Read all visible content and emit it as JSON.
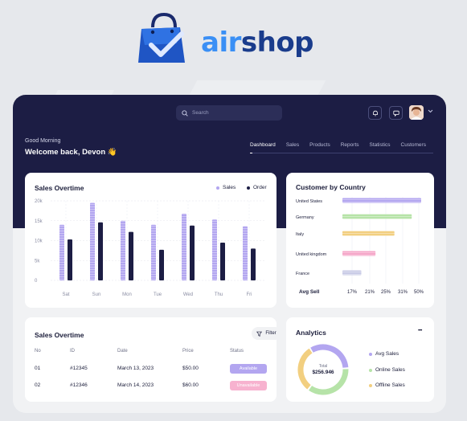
{
  "brand": {
    "name_part1": "air",
    "name_part2": "shop"
  },
  "header": {
    "search_placeholder": "Search",
    "greeting": "Good Morning",
    "welcome": "Welcome back, Devon 👋"
  },
  "tabs": [
    "Dashboard",
    "Sales",
    "Products",
    "Reports",
    "Statistics",
    "Customers"
  ],
  "sales_chart_card": {
    "title": "Sales Overtime",
    "legend": [
      "Sales",
      "Order"
    ]
  },
  "chart_data": [
    {
      "type": "bar",
      "title": "Sales Overtime",
      "categories": [
        "Sat",
        "Sun",
        "Mon",
        "Tue",
        "Wed",
        "Thu",
        "Fri"
      ],
      "y_ticks": [
        "0",
        "5k",
        "10k",
        "15k",
        "20k"
      ],
      "ylim": [
        0,
        20000
      ],
      "series": [
        {
          "name": "Sales",
          "color": "#b3a6f0",
          "values": [
            14000,
            19500,
            15000,
            14000,
            16800,
            15300,
            13600
          ]
        },
        {
          "name": "Order",
          "color": "#1c1d44",
          "values": [
            10300,
            14600,
            12200,
            7700,
            13800,
            9500,
            8000
          ]
        }
      ],
      "grid": true,
      "legend_placement": "top-right"
    },
    {
      "type": "bar",
      "orientation": "horizontal",
      "title": "Customer by Country",
      "categories": [
        "United States",
        "Germany",
        "Italy",
        "United kingdom",
        "France"
      ],
      "xlabel": "Avg Sell",
      "x_ticks": [
        "17%",
        "21%",
        "25%",
        "31%",
        "50%"
      ],
      "values": [
        50,
        44,
        33,
        21,
        12
      ],
      "colors": [
        "#b3a6f0",
        "#b6e3a8",
        "#f2cf80",
        "#f5a6c8",
        "#c9cbe6"
      ],
      "grid": true
    }
  ],
  "table_card": {
    "title": "Sales Overtime",
    "filter_label": "Filter",
    "columns": [
      "No",
      "ID",
      "Date",
      "Price",
      "Status"
    ],
    "rows": [
      {
        "no": "01",
        "id": "#12345",
        "date": "March 13, 2023",
        "price": "$50.00",
        "status": "Available",
        "status_color": "#b3a6f0"
      },
      {
        "no": "02",
        "id": "#12346",
        "date": "March 14, 2023",
        "price": "$60.00",
        "status": "Unavailable",
        "status_color": "#f7b2cf"
      }
    ]
  },
  "analytics_card": {
    "title": "Analytics",
    "more_label": "•••",
    "total_label": "Total",
    "total_value": "$256.946",
    "legend": [
      {
        "label": "Avg Sales",
        "color": "#b3a6f0"
      },
      {
        "label": "Online Sales",
        "color": "#b6e3a8"
      },
      {
        "label": "Offline Sales",
        "color": "#f2cf80"
      }
    ],
    "donut_shares": [
      0.33,
      0.36,
      0.31
    ]
  }
}
